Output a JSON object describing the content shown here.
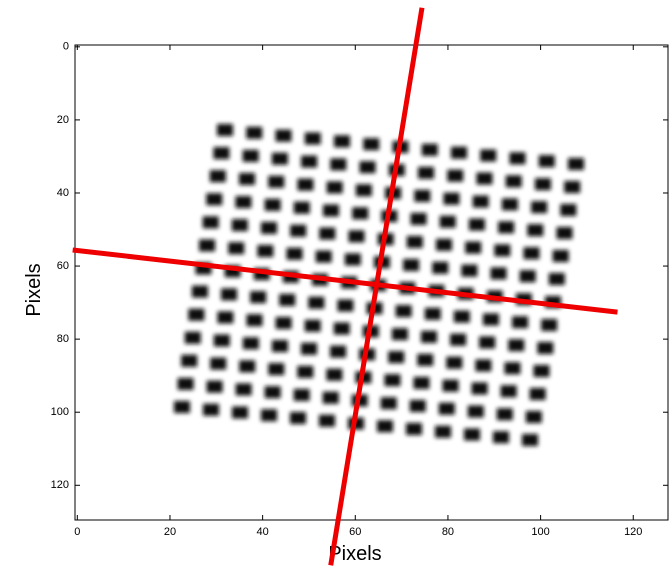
{
  "chart_data": {
    "type": "image",
    "xlabel": "Pixels",
    "ylabel": "Pixels",
    "xlim": [
      -0.5,
      127.5
    ],
    "ylim": [
      129.5,
      -0.5
    ],
    "xticks": [
      0,
      20,
      40,
      60,
      80,
      100,
      120
    ],
    "yticks": [
      0,
      20,
      40,
      60,
      80,
      100,
      120
    ],
    "lines": [
      {
        "color": "#ee0000",
        "x": [
          -1,
          116.6
        ],
        "y": [
          55.6,
          72.6
        ]
      },
      {
        "color": "#ee0000",
        "x": [
          74.4,
          54.7
        ],
        "y": [
          -10.7,
          141.9
        ]
      }
    ]
  }
}
